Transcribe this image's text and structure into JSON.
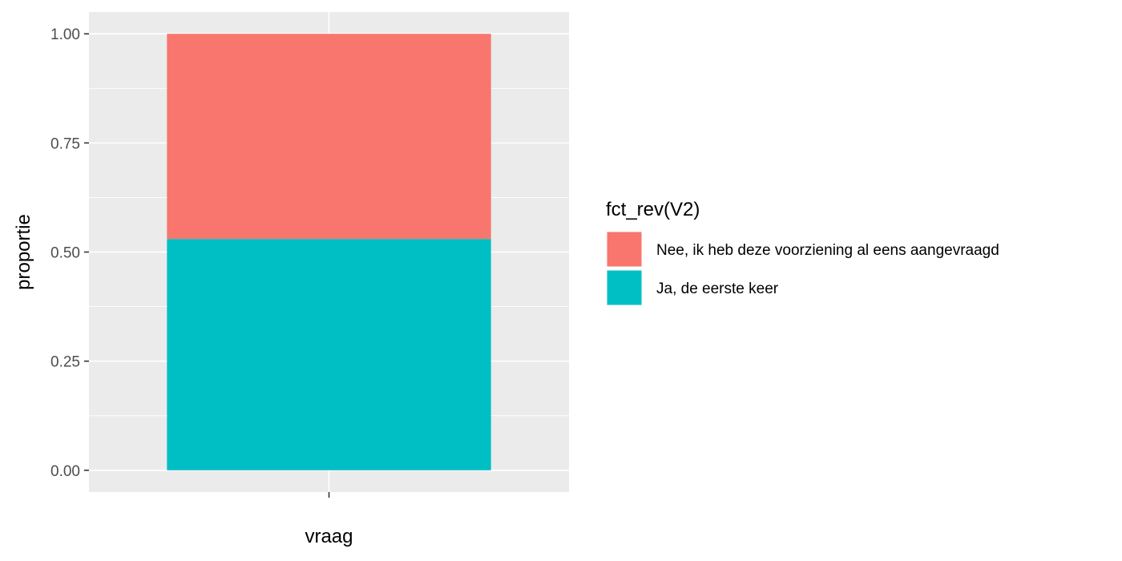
{
  "chart_data": {
    "type": "bar",
    "stacked": true,
    "categories": [
      ""
    ],
    "series": [
      {
        "name": "Ja, de eerste keer",
        "values": [
          0.53
        ],
        "color": "#00BFC4"
      },
      {
        "name": "Nee, ik heb deze voorziening al eens aangevraagd",
        "values": [
          0.47
        ],
        "color": "#F8766D"
      }
    ],
    "xlabel": "vraag",
    "ylabel": "proportie",
    "ylim": [
      -0.05,
      1.05
    ],
    "yticks": [
      0,
      0.25,
      0.5,
      0.75,
      1
    ],
    "ytick_labels": [
      "0.00",
      "0.25",
      "0.50",
      "0.75",
      "1.00"
    ],
    "grid": true,
    "panel_background": "#EBEBEB",
    "legend": {
      "title": "fct_rev(V2)",
      "placement": "right",
      "entries": [
        {
          "label": "Nee, ik heb deze voorziening al eens aangevraagd",
          "color": "#F8766D"
        },
        {
          "label": "Ja, de eerste keer",
          "color": "#00BFC4"
        }
      ]
    }
  }
}
